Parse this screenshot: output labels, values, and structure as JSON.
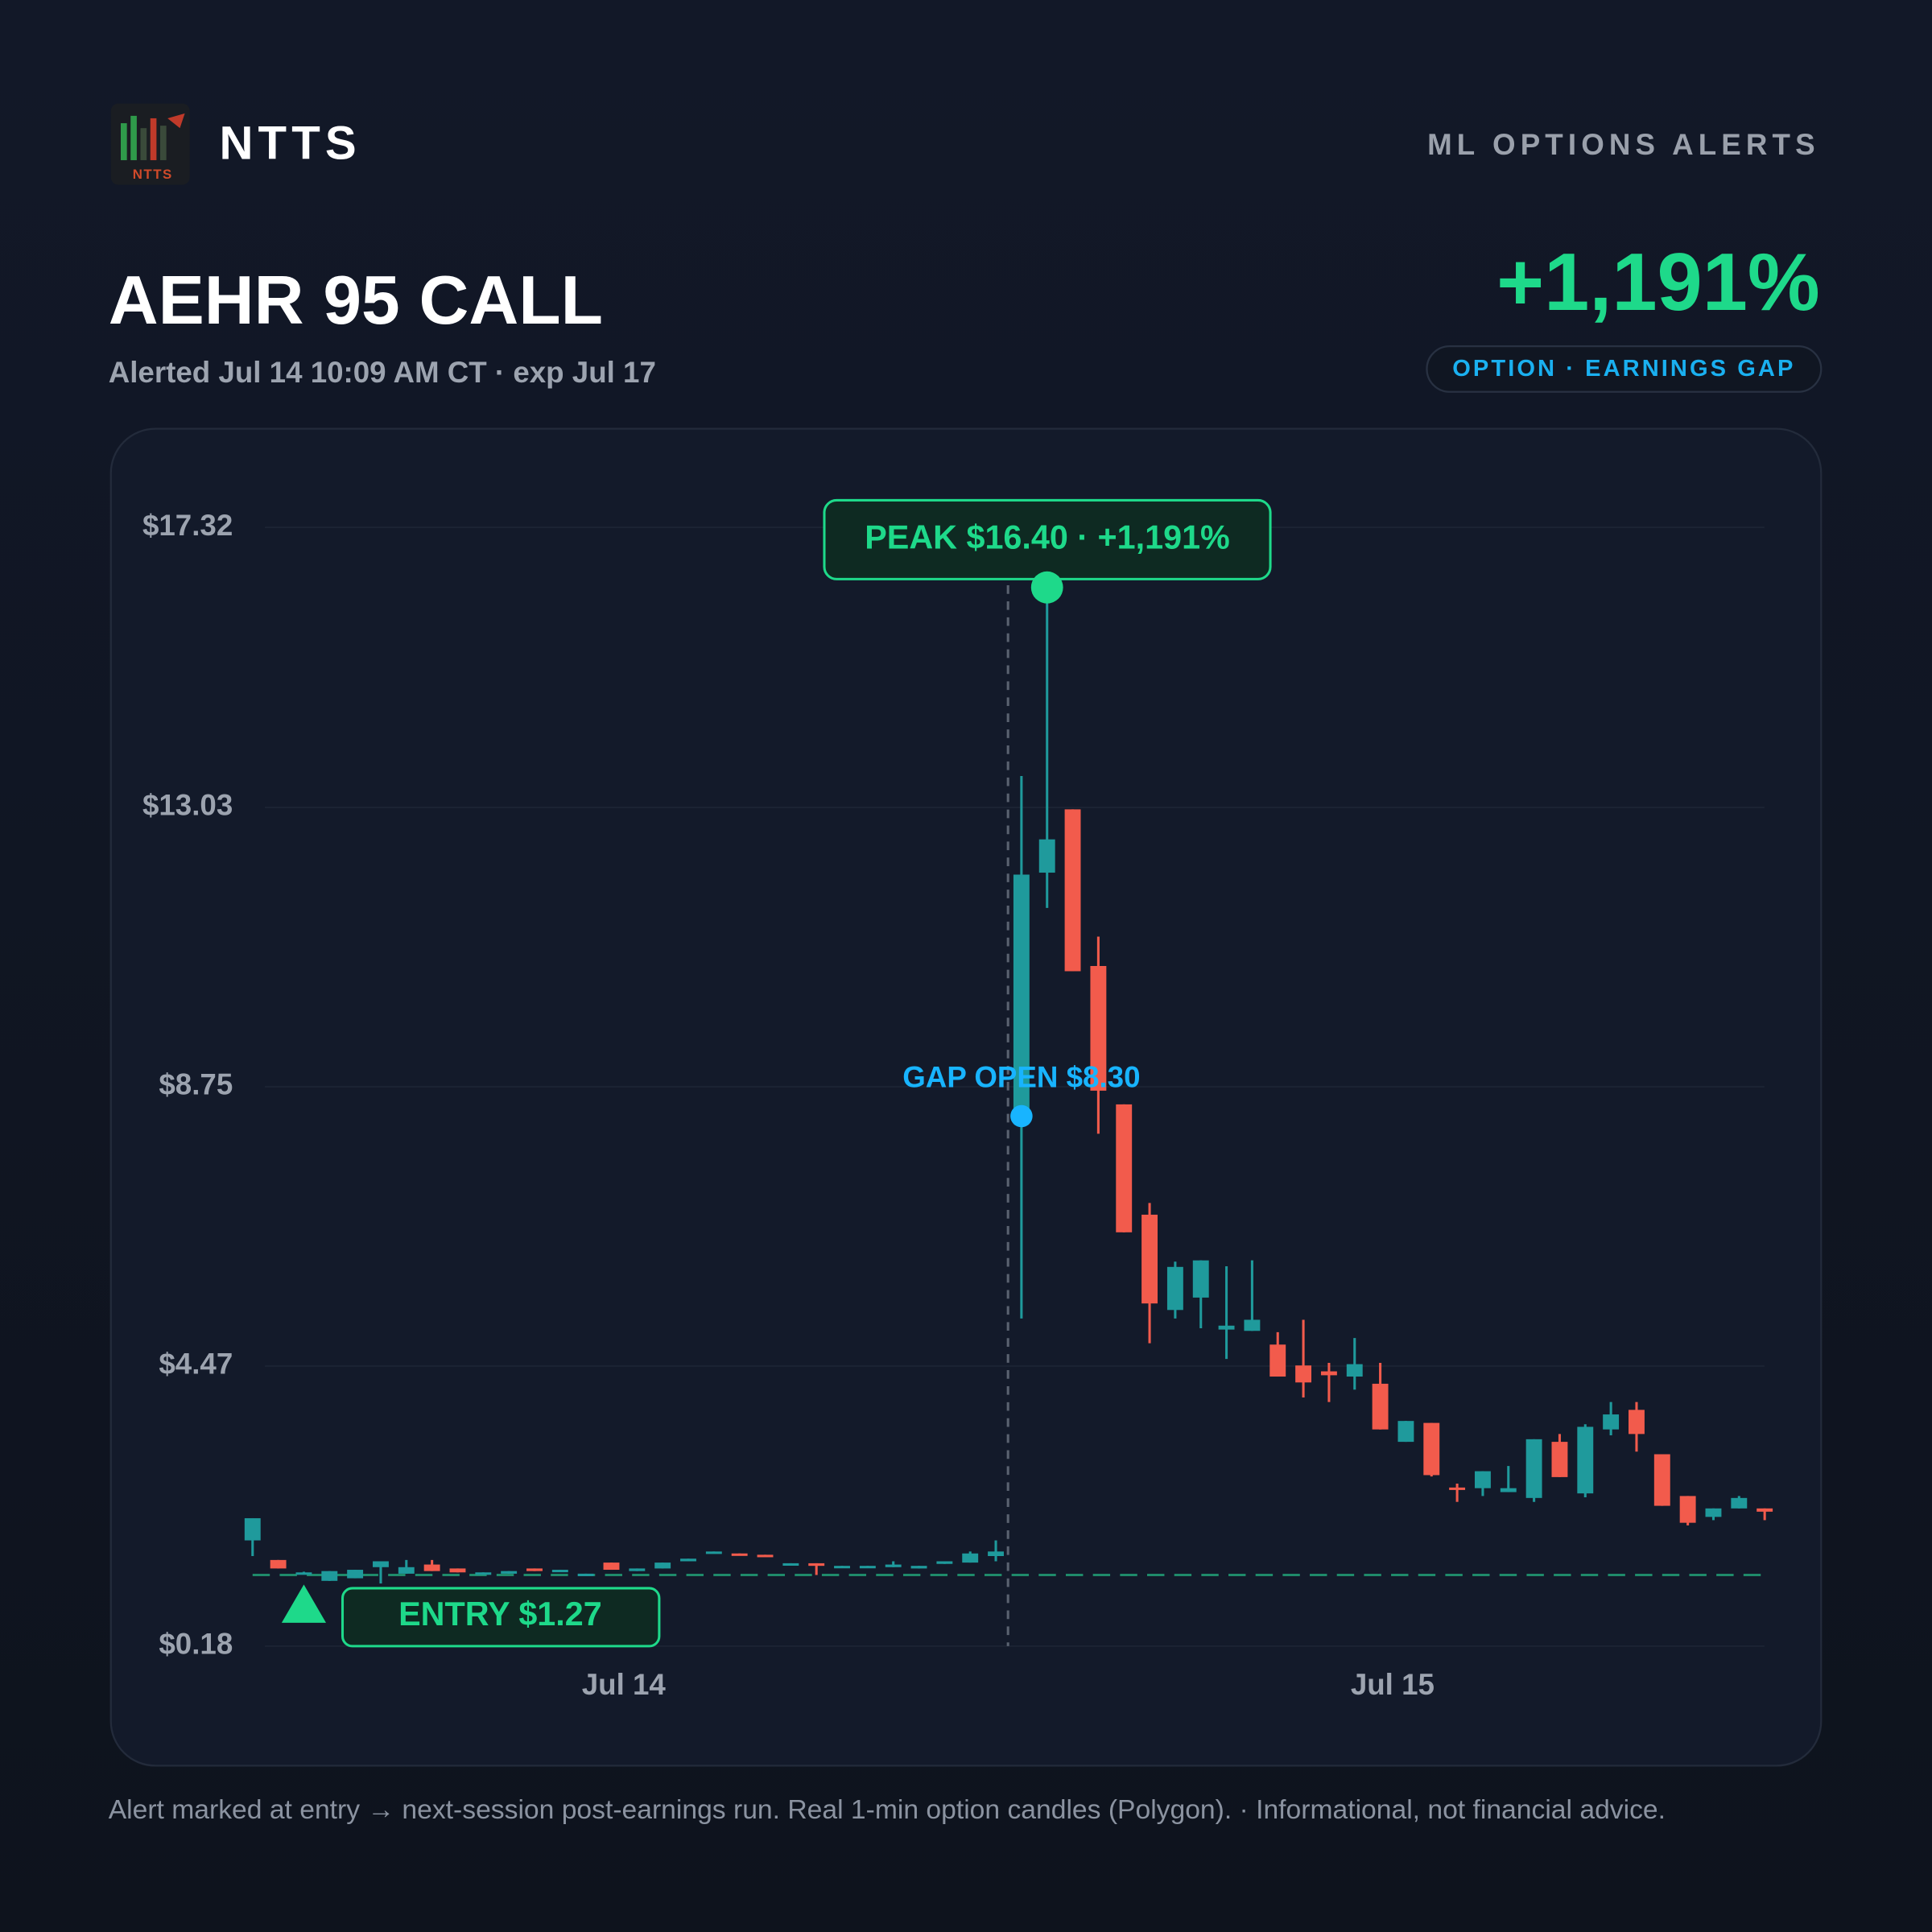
{
  "header": {
    "logo_text": "NTTS",
    "brand": "NTTS",
    "tagline": "ML OPTIONS ALERTS",
    "title": "AEHR 95 CALL",
    "subtitle": "Alerted Jul 14 10:09 AM CT · exp Jul 17",
    "gain": "+1,191%",
    "badge": "OPTION · EARNINGS GAP"
  },
  "chart_data": {
    "type": "candlestick",
    "categories": [
      null,
      null,
      null,
      null,
      null,
      null,
      null,
      null,
      null,
      null,
      null,
      null,
      null,
      null,
      "Jul 14",
      null,
      null,
      null,
      null,
      null,
      null,
      null,
      null,
      null,
      null,
      null,
      null,
      null,
      null,
      null,
      null,
      null,
      null,
      null,
      null,
      null,
      null,
      null,
      null,
      null,
      null,
      null,
      null,
      null,
      "Jul 15",
      null,
      null,
      null,
      null,
      null,
      null,
      null,
      null,
      null,
      null,
      null,
      null,
      null,
      null,
      null
    ],
    "open": [
      1.8,
      1.5,
      1.3,
      1.18,
      1.22,
      1.39,
      1.29,
      1.43,
      1.37,
      1.29,
      1.29,
      1.37,
      1.33,
      1.27,
      1.46,
      1.33,
      1.37,
      1.48,
      1.61,
      1.6,
      1.58,
      1.43,
      1.45,
      1.39,
      1.39,
      1.39,
      1.37,
      1.44,
      1.46,
      1.56,
      8.3,
      12.03,
      13.0,
      10.6,
      8.48,
      6.79,
      5.33,
      5.52,
      5.03,
      5.01,
      4.8,
      4.48,
      4.39,
      4.31,
      4.2,
      3.31,
      3.6,
      2.61,
      2.6,
      2.54,
      2.45,
      3.31,
      2.52,
      3.5,
      3.8,
      3.12,
      2.48,
      2.16,
      2.29,
      2.29
    ],
    "high": [
      2.14,
      1.5,
      1.32,
      1.33,
      1.35,
      1.48,
      1.5,
      1.5,
      1.37,
      1.31,
      1.33,
      1.37,
      1.35,
      1.29,
      1.46,
      1.37,
      1.46,
      1.52,
      1.63,
      1.6,
      1.58,
      1.45,
      1.45,
      1.41,
      1.41,
      1.48,
      1.41,
      1.48,
      1.63,
      1.8,
      13.51,
      16.4,
      13.0,
      11.05,
      8.48,
      6.97,
      6.07,
      6.09,
      6.0,
      6.09,
      4.99,
      5.18,
      4.52,
      4.9,
      4.52,
      3.63,
      3.6,
      2.67,
      2.86,
      2.94,
      3.35,
      3.43,
      3.58,
      3.92,
      3.92,
      3.12,
      2.48,
      2.29,
      2.48,
      2.29
    ],
    "low": [
      1.56,
      1.37,
      1.28,
      1.18,
      1.22,
      1.14,
      1.29,
      1.33,
      1.31,
      1.29,
      1.29,
      1.33,
      1.33,
      1.27,
      1.35,
      1.33,
      1.37,
      1.48,
      1.61,
      1.58,
      1.56,
      1.43,
      1.27,
      1.39,
      1.39,
      1.39,
      1.37,
      1.44,
      1.46,
      1.48,
      5.2,
      11.49,
      10.52,
      8.03,
      6.52,
      4.82,
      5.2,
      5.05,
      4.58,
      5.01,
      4.31,
      3.99,
      3.92,
      4.11,
      3.5,
      3.31,
      2.78,
      2.39,
      2.48,
      2.54,
      2.39,
      2.77,
      2.46,
      3.41,
      3.16,
      2.33,
      2.03,
      2.11,
      2.29,
      2.11
    ],
    "close": [
      2.14,
      1.37,
      1.31,
      1.33,
      1.35,
      1.48,
      1.39,
      1.33,
      1.31,
      1.31,
      1.33,
      1.33,
      1.35,
      1.29,
      1.35,
      1.37,
      1.46,
      1.52,
      1.63,
      1.58,
      1.56,
      1.45,
      1.41,
      1.41,
      1.41,
      1.43,
      1.41,
      1.48,
      1.6,
      1.63,
      12.0,
      12.54,
      10.52,
      8.69,
      6.52,
      5.43,
      5.99,
      6.09,
      5.09,
      5.18,
      4.31,
      4.22,
      4.33,
      4.5,
      3.5,
      3.63,
      2.8,
      2.58,
      2.86,
      2.6,
      3.35,
      2.77,
      3.54,
      3.73,
      3.43,
      2.33,
      2.07,
      2.29,
      2.45,
      2.24
    ],
    "up_color": "#1f9a9c",
    "down_color": "#f25b4c",
    "ylim": [
      0.18,
      17.32
    ],
    "yticks": [
      {
        "value": 17.32,
        "label": "$17.32"
      },
      {
        "value": 13.03,
        "label": "$13.03"
      },
      {
        "value": 8.75,
        "label": "$8.75"
      },
      {
        "value": 4.47,
        "label": "$4.47"
      },
      {
        "value": 0.18,
        "label": "$0.18"
      }
    ],
    "grid": true,
    "annotations": {
      "entry": {
        "label": "ENTRY $1.27",
        "value": 1.27,
        "index": 2,
        "color": "#1ed98a"
      },
      "peak": {
        "label": "PEAK $16.40 · +1,191%",
        "value": 16.4,
        "index": 31,
        "color": "#1ed98a"
      },
      "gap": {
        "label": "GAP OPEN $8.30",
        "value": 8.3,
        "index": 30,
        "color": "#18b4ff"
      }
    }
  },
  "footer": "Alert marked at entry → next-session post-earnings run. Real 1-min option candles (Polygon). · Informational, not financial advice."
}
